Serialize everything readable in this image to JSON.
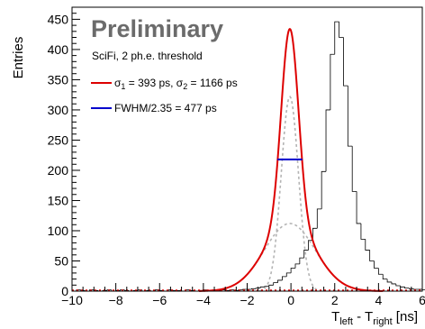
{
  "chart_data": {
    "type": "line",
    "ylabel": "Entries",
    "xlabel_main": "T",
    "xlabel_sub1": "left",
    "xlabel_mid": " - T",
    "xlabel_sub2": "right",
    "xlabel_unit": " [ns]",
    "xlim": [
      -10,
      6
    ],
    "ylim": [
      0,
      470
    ],
    "x_ticks": [
      -10,
      -8,
      -6,
      -4,
      -2,
      0,
      2,
      4,
      6
    ],
    "x_tick_labels": [
      "−10",
      "−8",
      "−6",
      "−4",
      "−2",
      "0",
      "2",
      "4",
      "6"
    ],
    "y_ticks": [
      0,
      50,
      100,
      150,
      200,
      250,
      300,
      350,
      400,
      450
    ],
    "y_tick_labels": [
      "0",
      "50",
      "100",
      "150",
      "200",
      "250",
      "300",
      "350",
      "400",
      "450"
    ],
    "grid": false,
    "annotations": {
      "preliminary": "Preliminary",
      "description": "SciFi, 2 ph.e. threshold",
      "legend_fit": {
        "pre": "σ",
        "sub1": "1",
        "mid": " =  393 ps, σ",
        "sub2": "2",
        "post": " = 1166 ps",
        "color": "#dd0000"
      },
      "legend_fwhm": {
        "text": "FWHM/2.35 =  477 ps",
        "color": "#0000cc"
      }
    },
    "fit_model": {
      "components": [
        {
          "name": "narrow",
          "amplitude": 322,
          "mean": -0.05,
          "sigma": 0.393,
          "color": "#b4b4b4"
        },
        {
          "name": "wide",
          "amplitude": 112,
          "mean": -0.05,
          "sigma": 1.166,
          "color": "#b4b4b4"
        }
      ],
      "total_color": "#dd0000"
    },
    "fwhm_marker": {
      "x_range": [
        -0.62,
        0.52
      ],
      "y": 218,
      "color": "#0000cc"
    },
    "histogram": {
      "bin_width": 0.2,
      "x_start": -10,
      "color": "#000000",
      "counts": [
        0,
        2,
        1,
        0,
        2,
        1,
        0,
        1,
        2,
        0,
        1,
        2,
        1,
        0,
        1,
        2,
        0,
        1,
        0,
        2,
        1,
        0,
        2,
        1,
        1,
        0,
        2,
        1,
        0,
        1,
        2,
        1,
        0,
        1,
        2,
        1,
        2,
        1,
        2,
        3,
        3,
        4,
        5,
        7,
        8,
        10,
        14,
        18,
        24,
        30,
        38,
        45,
        55,
        68,
        84,
        104,
        136,
        198,
        300,
        392,
        446,
        420,
        340,
        240,
        165,
        112,
        86,
        68,
        50,
        38,
        28,
        20,
        15,
        12,
        9,
        7,
        5,
        4,
        3,
        3,
        2,
        2,
        1,
        2,
        1,
        1,
        2,
        0,
        1,
        1,
        0,
        1,
        0,
        1,
        1,
        0,
        1,
        0,
        1,
        0
      ]
    }
  }
}
